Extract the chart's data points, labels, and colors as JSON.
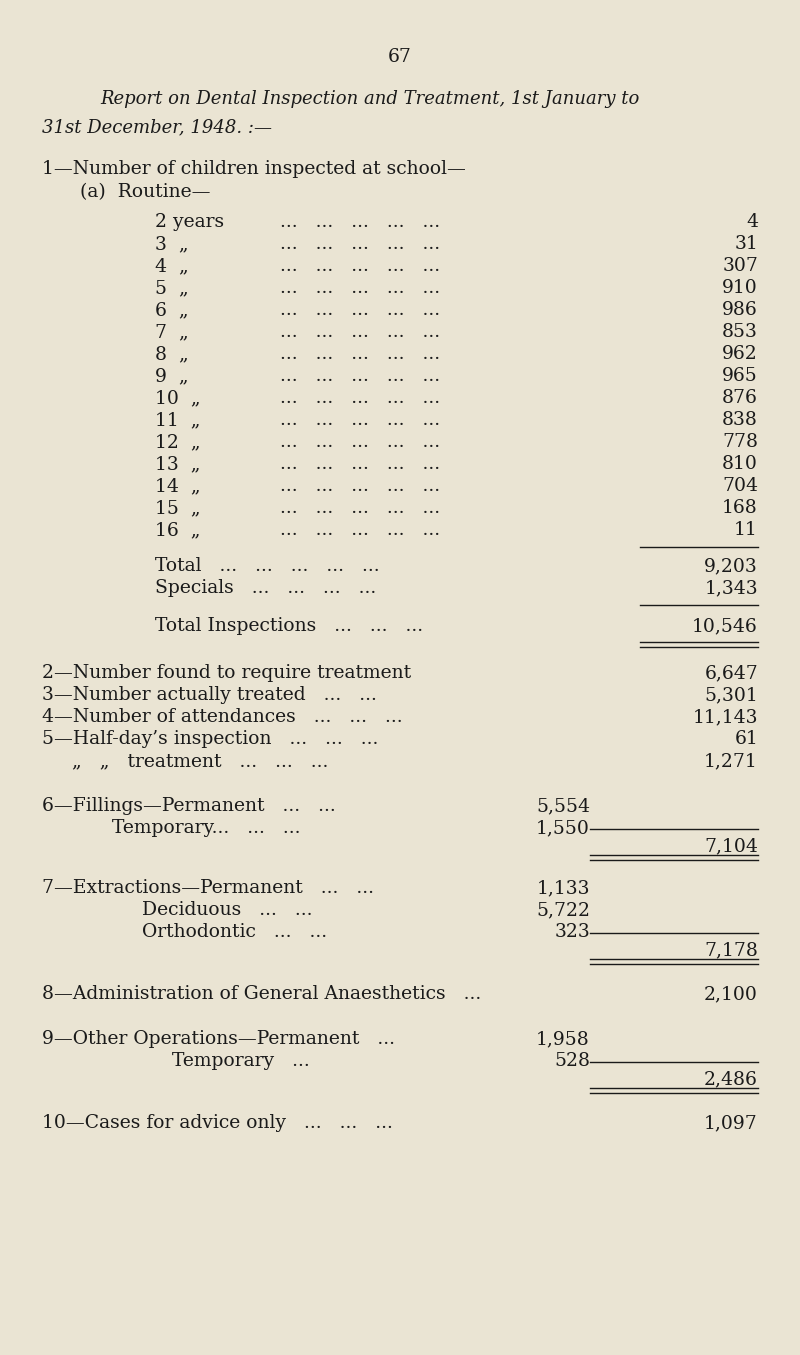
{
  "page_number": "67",
  "bg_color": "#EAE4D3",
  "text_color": "#1a1a1a",
  "title_line1": "Report on Dental Inspection and Treatment, 1st January to",
  "title_line2": "31st December, 1948. :—",
  "age_labels": [
    "2 years",
    "3  „",
    "4  „",
    "5  „",
    "6  „",
    "7  „",
    "8  „",
    "9  „",
    "10  „",
    "11  „",
    "12  „",
    "13  „",
    "14  „",
    "15  „",
    "16  „"
  ],
  "age_values": [
    "4",
    "31",
    "307",
    "910",
    "986",
    "853",
    "962",
    "965",
    "876",
    "838",
    "778",
    "810",
    "704",
    "168",
    "11"
  ],
  "total_value": "9,203",
  "specials_value": "1,343",
  "total_inspections_value": "10,546",
  "s2_val": "6,647",
  "s3_val": "5,301",
  "s4_val": "11,143",
  "s5a_val": "61",
  "s5b_val": "1,271",
  "s6a_val": "5,554",
  "s6b_val": "1,550",
  "s6_total": "7,104",
  "s7a_val": "1,133",
  "s7b_val": "5,722",
  "s7c_val": "323",
  "s7_total": "7,178",
  "s8_val": "2,100",
  "s9a_val": "1,958",
  "s9b_val": "528",
  "s9_total": "2,486",
  "s10_val": "1,097"
}
